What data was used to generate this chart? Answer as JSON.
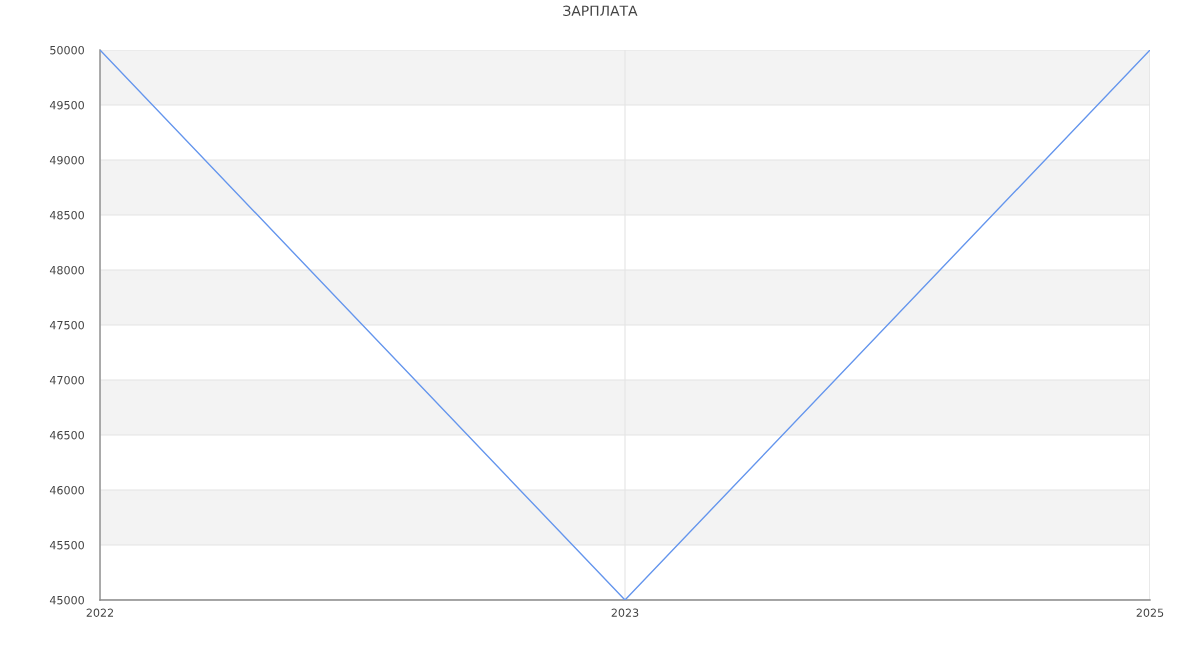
{
  "chart_data": {
    "type": "line",
    "title": "ЗАРПЛАТА",
    "categories": [
      "2022",
      "2023",
      "2025"
    ],
    "series": [
      {
        "color": "#6495ed",
        "values": [
          50000,
          45000,
          50000
        ]
      }
    ],
    "ylim": [
      45000,
      50000
    ],
    "yticks": [
      45000,
      45500,
      46000,
      46500,
      47000,
      47500,
      48000,
      48500,
      49000,
      49500,
      50000
    ],
    "bands": [
      {
        "axis": "y",
        "from": 45500,
        "to": 46000,
        "color": "#f3f3f3"
      },
      {
        "axis": "y",
        "from": 46500,
        "to": 47000,
        "color": "#f3f3f3"
      },
      {
        "axis": "y",
        "from": 47500,
        "to": 48000,
        "color": "#f3f3f3"
      },
      {
        "axis": "y",
        "from": 48500,
        "to": 49000,
        "color": "#f3f3f3"
      },
      {
        "axis": "y",
        "from": 49500,
        "to": 50000,
        "color": "#f3f3f3"
      }
    ],
    "grid": true,
    "marker": "none",
    "line_style": "solid"
  }
}
